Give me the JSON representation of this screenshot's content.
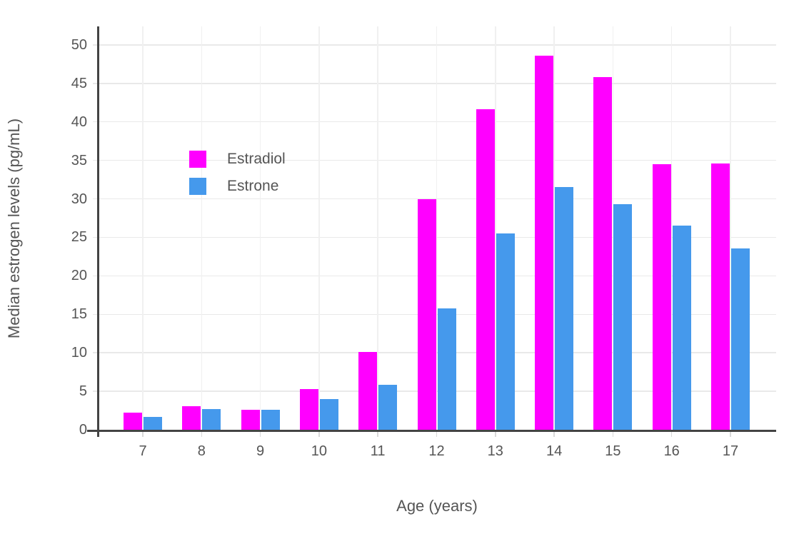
{
  "chart_data": {
    "type": "bar",
    "title": "",
    "xlabel": "Age (years)",
    "ylabel": "Median estrogen levels (pg/mL)",
    "categories": [
      "7",
      "8",
      "9",
      "10",
      "11",
      "12",
      "13",
      "14",
      "15",
      "16",
      "17"
    ],
    "series": [
      {
        "name": "Estradiol",
        "color": "#FF00FF",
        "values": [
          2.2,
          3.1,
          2.6,
          5.3,
          10.1,
          30.0,
          41.6,
          48.6,
          45.8,
          34.5,
          34.6
        ]
      },
      {
        "name": "Estrone",
        "color": "#4599EC",
        "values": [
          1.7,
          2.7,
          2.6,
          4.0,
          5.8,
          15.8,
          25.5,
          31.5,
          29.3,
          26.5,
          23.6
        ]
      }
    ],
    "ylim": [
      0,
      52.4
    ],
    "yticks": [
      0,
      5,
      10,
      15,
      20,
      25,
      30,
      35,
      40,
      45,
      50
    ],
    "grid": true,
    "legend_position": "inside-top-left",
    "colors": {
      "background": "#FFFFFF",
      "axis_line": "#444444",
      "tick_label": "#555555",
      "grid_horizontal": "#E9E9E9",
      "grid_vertical": "#F0F0F0",
      "x_tick_mark": "#D9D9D9"
    }
  }
}
